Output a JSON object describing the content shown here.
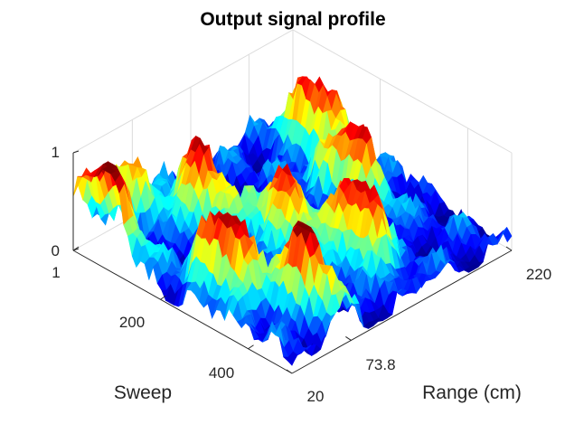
{
  "chart_data": {
    "type": "surface",
    "title": "Output signal profile",
    "xlabel": "Range (cm)",
    "ylabel": "Sweep",
    "zlabel": "",
    "x_ticks": [
      "20",
      "73.8",
      "220"
    ],
    "y_ticks": [
      "1",
      "200",
      "400"
    ],
    "z_ticks": [
      "0",
      "1"
    ],
    "xlim": [
      20,
      220
    ],
    "ylim": [
      1,
      500
    ],
    "zlim": [
      0,
      1
    ],
    "colormap": "jet",
    "grid": true,
    "view": "3d",
    "peaks": [
      {
        "range": 25,
        "sweep": 60,
        "amplitude": 0.95
      },
      {
        "range": 60,
        "sweep": 20,
        "amplitude": 0.55
      },
      {
        "range": 90,
        "sweep": 120,
        "amplitude": 0.9
      },
      {
        "range": 110,
        "sweep": 260,
        "amplitude": 0.85
      },
      {
        "range": 130,
        "sweep": 380,
        "amplitude": 0.95
      },
      {
        "range": 175,
        "sweep": 250,
        "amplitude": 0.75
      },
      {
        "range": 195,
        "sweep": 120,
        "amplitude": 0.8
      },
      {
        "range": 40,
        "sweep": 300,
        "amplitude": 0.9
      },
      {
        "range": 65,
        "sweep": 420,
        "amplitude": 0.8
      }
    ]
  }
}
